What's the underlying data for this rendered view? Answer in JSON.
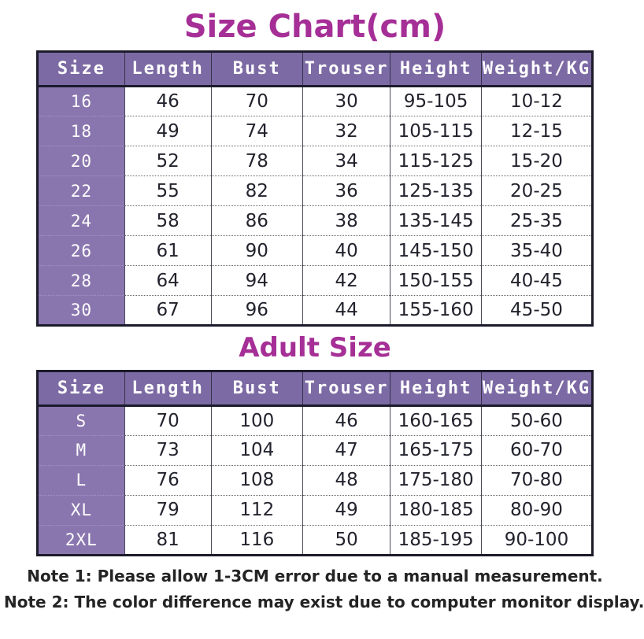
{
  "title": "Size Chart(cm)",
  "adult_title": "Adult Size",
  "colors": {
    "accent": "#a52f96",
    "header_bg": "#7c6aa4",
    "size_col_bg": "#8a76af",
    "border": "#1b1b2b",
    "text": "#23232e"
  },
  "kids_table": {
    "headers": [
      "Size",
      "Length",
      "Bust",
      "Trouser",
      "Height",
      "Weight/KG"
    ],
    "rows": [
      [
        "16",
        "46",
        "70",
        "30",
        "95-105",
        "10-12"
      ],
      [
        "18",
        "49",
        "74",
        "32",
        "105-115",
        "12-15"
      ],
      [
        "20",
        "52",
        "78",
        "34",
        "115-125",
        "15-20"
      ],
      [
        "22",
        "55",
        "82",
        "36",
        "125-135",
        "20-25"
      ],
      [
        "24",
        "58",
        "86",
        "38",
        "135-145",
        "25-35"
      ],
      [
        "26",
        "61",
        "90",
        "40",
        "145-150",
        "35-40"
      ],
      [
        "28",
        "64",
        "94",
        "42",
        "150-155",
        "40-45"
      ],
      [
        "30",
        "67",
        "96",
        "44",
        "155-160",
        "45-50"
      ]
    ]
  },
  "adult_table": {
    "headers": [
      "Size",
      "Length",
      "Bust",
      "Trouser",
      "Height",
      "Weight/KG"
    ],
    "rows": [
      [
        "S",
        "70",
        "100",
        "46",
        "160-165",
        "50-60"
      ],
      [
        "M",
        "73",
        "104",
        "47",
        "165-175",
        "60-70"
      ],
      [
        "L",
        "76",
        "108",
        "48",
        "175-180",
        "70-80"
      ],
      [
        "XL",
        "79",
        "112",
        "49",
        "180-185",
        "80-90"
      ],
      [
        "2XL",
        "81",
        "116",
        "50",
        "185-195",
        "90-100"
      ]
    ]
  },
  "notes": [
    "Note 1: Please allow 1-3CM error due to a manual measurement.",
    "Note 2: The color difference may exist due to computer monitor display."
  ]
}
